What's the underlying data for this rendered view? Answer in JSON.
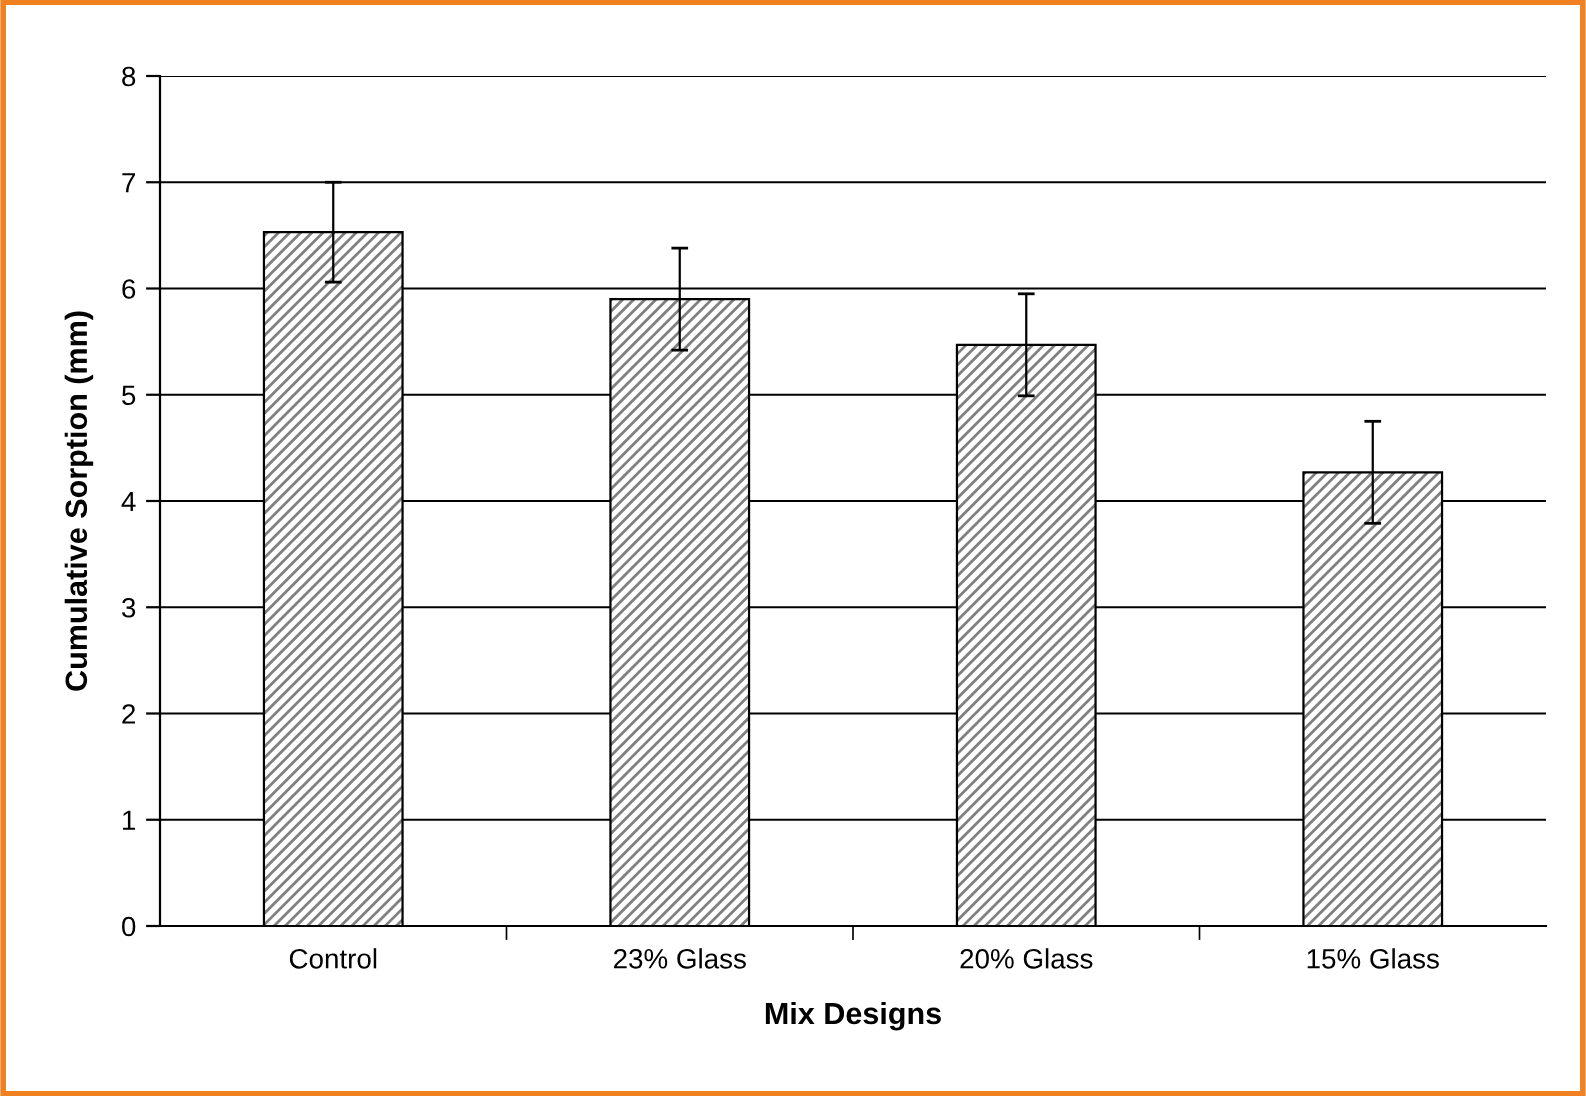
{
  "chart_data": {
    "type": "bar",
    "xlabel": "Mix Designs",
    "ylabel": "Cumulative Sorption (mm)",
    "categories": [
      "Control",
      "23% Glass",
      "20% Glass",
      "15% Glass"
    ],
    "values": [
      6.53,
      5.9,
      5.47,
      4.27
    ],
    "errors": [
      0.47,
      0.48,
      0.48,
      0.48
    ],
    "color": "#000000",
    "ylim": [
      0,
      8
    ],
    "yticks": [
      0,
      1,
      2,
      3,
      4,
      5,
      6,
      7,
      8
    ],
    "grid": "y",
    "legend": false
  }
}
